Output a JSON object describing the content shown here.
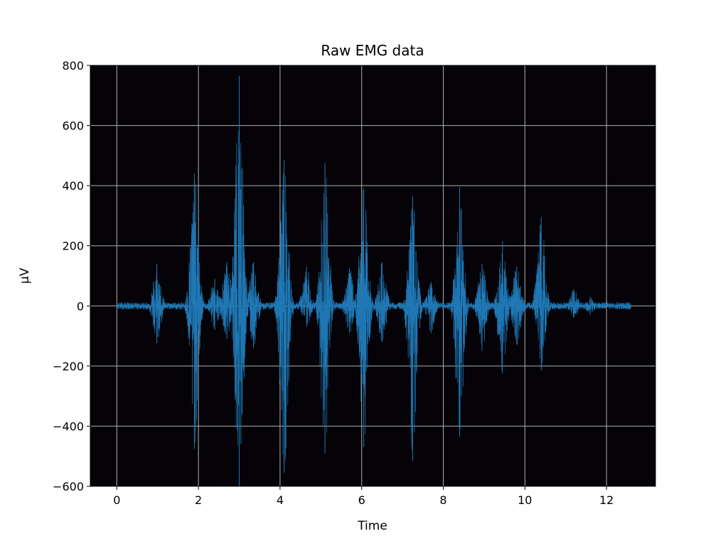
{
  "chart_data": {
    "type": "line",
    "title": "Raw EMG data",
    "xlabel": "Time",
    "ylabel": "µV",
    "xlim": [
      -0.65,
      13.2
    ],
    "ylim": [
      -600,
      800
    ],
    "x_ticks": [
      0,
      2,
      4,
      6,
      8,
      10,
      12
    ],
    "x_tick_labels": [
      "0",
      "2",
      "4",
      "6",
      "8",
      "10",
      "12"
    ],
    "y_ticks": [
      -600,
      -400,
      -200,
      0,
      200,
      400,
      600,
      800
    ],
    "y_tick_labels": [
      "−600",
      "−400",
      "−200",
      "0",
      "200",
      "400",
      "600",
      "800"
    ],
    "grid": true,
    "background_color": "#050307",
    "grid_color": "#b0b0b0",
    "series": [
      {
        "color": "#1f77b4",
        "x_range": [
          0,
          12.6
        ],
        "baseline_noise_uV": 12,
        "bursts": [
          {
            "t": 0.98,
            "max": 140,
            "min": -125
          },
          {
            "t": 1.9,
            "max": 440,
            "min": -475
          },
          {
            "t": 2.4,
            "max": 90,
            "min": -80
          },
          {
            "t": 2.7,
            "max": 145,
            "min": -110
          },
          {
            "t": 3.0,
            "max": 765,
            "min": -600
          },
          {
            "t": 3.35,
            "max": 145,
            "min": -140
          },
          {
            "t": 4.1,
            "max": 485,
            "min": -555
          },
          {
            "t": 4.65,
            "max": 130,
            "min": -70
          },
          {
            "t": 5.1,
            "max": 475,
            "min": -490
          },
          {
            "t": 5.7,
            "max": 125,
            "min": -90
          },
          {
            "t": 6.05,
            "max": 390,
            "min": -470
          },
          {
            "t": 6.5,
            "max": 145,
            "min": -120
          },
          {
            "t": 7.25,
            "max": 365,
            "min": -515
          },
          {
            "t": 7.7,
            "max": 80,
            "min": -90
          },
          {
            "t": 8.4,
            "max": 395,
            "min": -435
          },
          {
            "t": 8.95,
            "max": 140,
            "min": -150
          },
          {
            "t": 9.45,
            "max": 215,
            "min": -225
          },
          {
            "t": 9.8,
            "max": 130,
            "min": -130
          },
          {
            "t": 10.4,
            "max": 295,
            "min": -215
          },
          {
            "t": 11.2,
            "max": 55,
            "min": -40
          },
          {
            "t": 11.6,
            "max": 30,
            "min": -30
          }
        ]
      }
    ]
  }
}
